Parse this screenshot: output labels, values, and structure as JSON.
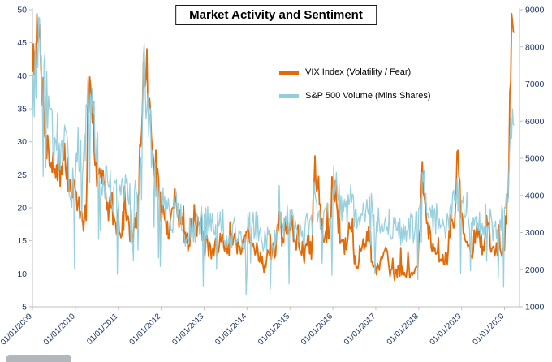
{
  "labels": {
    "tick_color": "#1F3864",
    "axis_line_color": "#bfbfbf"
  },
  "chart_data": {
    "type": "line",
    "title": "Market Activity and Sentiment",
    "x_start": "01/2009",
    "x_interval": "monthly",
    "x_tick_labels": [
      "01/01/2009",
      "01/01/2010",
      "01/01/2011",
      "01/01/2012",
      "01/01/2013",
      "01/01/2014",
      "01/01/2015",
      "01/01/2016",
      "01/01/2017",
      "01/01/2018",
      "01/01/2019",
      "01/01/2020"
    ],
    "left_axis": {
      "min": 5,
      "max": 50,
      "step": 5,
      "ticks": [
        5,
        10,
        15,
        20,
        25,
        30,
        35,
        40,
        45,
        50
      ]
    },
    "right_axis": {
      "min": 1000,
      "max": 9000,
      "step": 1000,
      "ticks": [
        1000,
        2000,
        3000,
        4000,
        5000,
        6000,
        7000,
        8000,
        9000
      ]
    },
    "legend": [
      {
        "label": "VIX Index (Volatility / Fear)",
        "color": "#E36C0A"
      },
      {
        "label": "S&P 500 Volume (Mlns Shares)",
        "color": "#92CDDC"
      }
    ],
    "series": [
      {
        "name": "VIX Index (Volatility / Fear)",
        "axis": "left",
        "color": "#E36C0A",
        "monthly_values": [
          43,
          46,
          45,
          37,
          30,
          27,
          26,
          26,
          25,
          28,
          24,
          22,
          23,
          20,
          18,
          19,
          36,
          33,
          25,
          25,
          23,
          20,
          21,
          18,
          18,
          17,
          20,
          16,
          16,
          18,
          22,
          40,
          41,
          32,
          28,
          24,
          20,
          18,
          16,
          18,
          23,
          19,
          17,
          15,
          15,
          17,
          17,
          18,
          14,
          14,
          13,
          14,
          14,
          17,
          14,
          14,
          15,
          15,
          13,
          14,
          16,
          15,
          14,
          14,
          12,
          11,
          13,
          13,
          14,
          20,
          14,
          16,
          19,
          15,
          15,
          14,
          13,
          15,
          13,
          26,
          24,
          17,
          16,
          17,
          24,
          21,
          15,
          14,
          14,
          18,
          12,
          12,
          14,
          14,
          16,
          12,
          11,
          11,
          12,
          13,
          10,
          10,
          10,
          11,
          10,
          10,
          11,
          10,
          12,
          26,
          19,
          16,
          14,
          14,
          13,
          12,
          12,
          18,
          19,
          28,
          18,
          15,
          14,
          13,
          17,
          15,
          13,
          18,
          15,
          14,
          13,
          14,
          14,
          24,
          46.6
        ]
      },
      {
        "name": "S&P 500 Volume (Mlns Shares)",
        "axis": "right",
        "color": "#92CDDC",
        "monthly_values": [
          6600,
          7400,
          8300,
          7200,
          6600,
          5900,
          5300,
          5500,
          5100,
          5300,
          4700,
          4200,
          4900,
          5300,
          4500,
          5700,
          7200,
          6100,
          5100,
          4700,
          4300,
          4400,
          4200,
          3900,
          4200,
          4000,
          4300,
          3800,
          3900,
          4100,
          4500,
          7400,
          6300,
          5600,
          4700,
          4100,
          3800,
          3700,
          3500,
          3400,
          3700,
          3600,
          3100,
          2800,
          3000,
          3000,
          3100,
          3300,
          3200,
          3300,
          3100,
          3200,
          3300,
          3400,
          2900,
          2800,
          3000,
          3000,
          2800,
          2800,
          3100,
          3300,
          3200,
          3100,
          2700,
          2700,
          2900,
          2500,
          2900,
          3800,
          3100,
          3300,
          3400,
          3300,
          3200,
          3100,
          3000,
          3200,
          3100,
          4100,
          3700,
          3400,
          3300,
          3400,
          4300,
          4100,
          3700,
          3500,
          3500,
          3900,
          3500,
          3200,
          3400,
          3400,
          3800,
          3800,
          3200,
          3300,
          3200,
          3100,
          3200,
          3300,
          2900,
          3000,
          3000,
          3000,
          3100,
          3100,
          3500,
          4500,
          3800,
          3400,
          3300,
          3400,
          3100,
          3000,
          3100,
          3800,
          3600,
          4100,
          3900,
          3700,
          3500,
          3300,
          3500,
          3300,
          3100,
          3500,
          3200,
          3100,
          3200,
          3200,
          3600,
          4300,
          5900
        ]
      }
    ],
    "render_hints": {
      "samples_per_month": 4,
      "x_end_year": 2020.35,
      "noise": {
        "seed_vix": 7,
        "seed_vol": 13,
        "vix_amp": 0.22,
        "vol_amp": 0.28,
        "vix_spike_prob": 0.05,
        "vol_dip_prob": 0.04,
        "holiday_dip_factor": 0.5
      }
    }
  }
}
